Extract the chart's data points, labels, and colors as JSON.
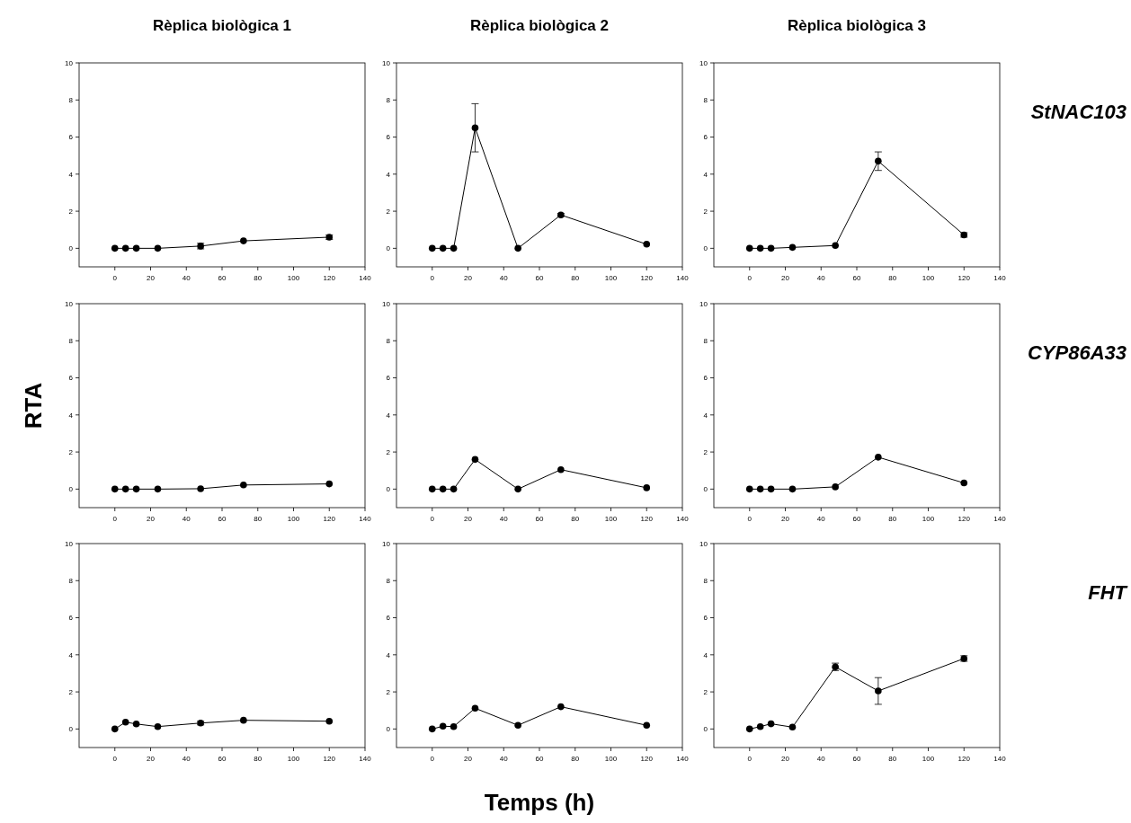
{
  "chart_data": [
    {
      "type": "line",
      "title": "Rèplica biològica 1",
      "x": [
        0,
        6,
        12,
        24,
        48,
        72,
        120
      ],
      "values": [
        0,
        0,
        0,
        0,
        0.12,
        0.4,
        0.6
      ],
      "errors": [
        null,
        null,
        null,
        null,
        0.15,
        null,
        0.12
      ],
      "color": "#000000",
      "marker": "circle",
      "line_style": "solid",
      "xlim": [
        -20,
        140
      ],
      "ylim": [
        -1,
        10
      ],
      "xticks": [
        0,
        20,
        40,
        60,
        80,
        100,
        120,
        140
      ],
      "yticks": [
        0,
        2,
        4,
        6,
        8,
        10
      ]
    },
    {
      "type": "line",
      "title": "Rèplica biològica 2",
      "x": [
        0,
        6,
        12,
        24,
        48,
        72,
        120
      ],
      "values": [
        0,
        0,
        0,
        6.5,
        0,
        1.8,
        0.22
      ],
      "errors": [
        null,
        null,
        null,
        1.3,
        null,
        0.08,
        null
      ],
      "color": "#000000",
      "marker": "circle",
      "line_style": "solid",
      "xlim": [
        -20,
        140
      ],
      "ylim": [
        -1,
        10
      ],
      "xticks": [
        0,
        20,
        40,
        60,
        80,
        100,
        120,
        140
      ],
      "yticks": [
        0,
        2,
        4,
        6,
        8,
        10
      ]
    },
    {
      "type": "line",
      "title": "Rèplica biològica 3",
      "annotations": [
        "StNAC103"
      ],
      "x": [
        0,
        6,
        12,
        24,
        48,
        72,
        120
      ],
      "values": [
        0,
        0,
        0,
        0.05,
        0.15,
        4.7,
        0.72
      ],
      "errors": [
        null,
        null,
        null,
        null,
        null,
        0.5,
        0.12
      ],
      "color": "#000000",
      "marker": "circle",
      "line_style": "solid",
      "xlim": [
        -20,
        140
      ],
      "ylim": [
        -1,
        10
      ],
      "xticks": [
        0,
        20,
        40,
        60,
        80,
        100,
        120,
        140
      ],
      "yticks": [
        0,
        2,
        4,
        6,
        8,
        10
      ]
    },
    {
      "type": "line",
      "ylabel": "RTA",
      "x": [
        0,
        6,
        12,
        24,
        48,
        72,
        120
      ],
      "values": [
        0,
        0,
        0,
        0,
        0.02,
        0.22,
        0.28
      ],
      "color": "#000000",
      "marker": "circle",
      "line_style": "solid",
      "xlim": [
        -20,
        140
      ],
      "ylim": [
        -1,
        10
      ],
      "xticks": [
        0,
        20,
        40,
        60,
        80,
        100,
        120,
        140
      ],
      "yticks": [
        0,
        2,
        4,
        6,
        8,
        10
      ]
    },
    {
      "type": "line",
      "x": [
        0,
        6,
        12,
        24,
        48,
        72,
        120
      ],
      "values": [
        0,
        0,
        0,
        1.6,
        0,
        1.05,
        0.07
      ],
      "color": "#000000",
      "marker": "circle",
      "line_style": "solid",
      "xlim": [
        -20,
        140
      ],
      "ylim": [
        -1,
        10
      ],
      "xticks": [
        0,
        20,
        40,
        60,
        80,
        100,
        120,
        140
      ],
      "yticks": [
        0,
        2,
        4,
        6,
        8,
        10
      ]
    },
    {
      "type": "line",
      "annotations": [
        "CYP86A33"
      ],
      "x": [
        0,
        6,
        12,
        24,
        48,
        72,
        120
      ],
      "values": [
        0,
        0,
        0,
        0,
        0.12,
        1.72,
        0.33
      ],
      "color": "#000000",
      "marker": "circle",
      "line_style": "solid",
      "xlim": [
        -20,
        140
      ],
      "ylim": [
        -1,
        10
      ],
      "xticks": [
        0,
        20,
        40,
        60,
        80,
        100,
        120,
        140
      ],
      "yticks": [
        0,
        2,
        4,
        6,
        8,
        10
      ]
    },
    {
      "type": "line",
      "x": [
        0,
        6,
        12,
        24,
        48,
        72,
        120
      ],
      "values": [
        0,
        0.37,
        0.27,
        0.13,
        0.32,
        0.47,
        0.42
      ],
      "errors": [
        null,
        null,
        null,
        null,
        0.1,
        null,
        null
      ],
      "color": "#000000",
      "marker": "circle",
      "line_style": "solid",
      "xlim": [
        -20,
        140
      ],
      "ylim": [
        -1,
        10
      ],
      "xticks": [
        0,
        20,
        40,
        60,
        80,
        100,
        120,
        140
      ],
      "yticks": [
        0,
        2,
        4,
        6,
        8,
        10
      ]
    },
    {
      "type": "line",
      "xlabel": "Temps (h)",
      "x": [
        0,
        6,
        12,
        24,
        48,
        72,
        120
      ],
      "values": [
        0,
        0.15,
        0.13,
        1.12,
        0.2,
        1.2,
        0.2
      ],
      "color": "#000000",
      "marker": "circle",
      "line_style": "solid",
      "xlim": [
        -20,
        140
      ],
      "ylim": [
        -1,
        10
      ],
      "xticks": [
        0,
        20,
        40,
        60,
        80,
        100,
        120,
        140
      ],
      "yticks": [
        0,
        2,
        4,
        6,
        8,
        10
      ]
    },
    {
      "type": "line",
      "annotations": [
        "FHT"
      ],
      "x": [
        0,
        6,
        12,
        24,
        48,
        72,
        120
      ],
      "values": [
        0,
        0.13,
        0.28,
        0.1,
        3.35,
        2.05,
        3.8
      ],
      "errors": [
        null,
        null,
        null,
        null,
        0.2,
        0.72,
        0.15
      ],
      "color": "#000000",
      "marker": "circle",
      "line_style": "solid",
      "xlim": [
        -20,
        140
      ],
      "ylim": [
        -1,
        10
      ],
      "xticks": [
        0,
        20,
        40,
        60,
        80,
        100,
        120,
        140
      ],
      "yticks": [
        0,
        2,
        4,
        6,
        8,
        10
      ]
    }
  ]
}
